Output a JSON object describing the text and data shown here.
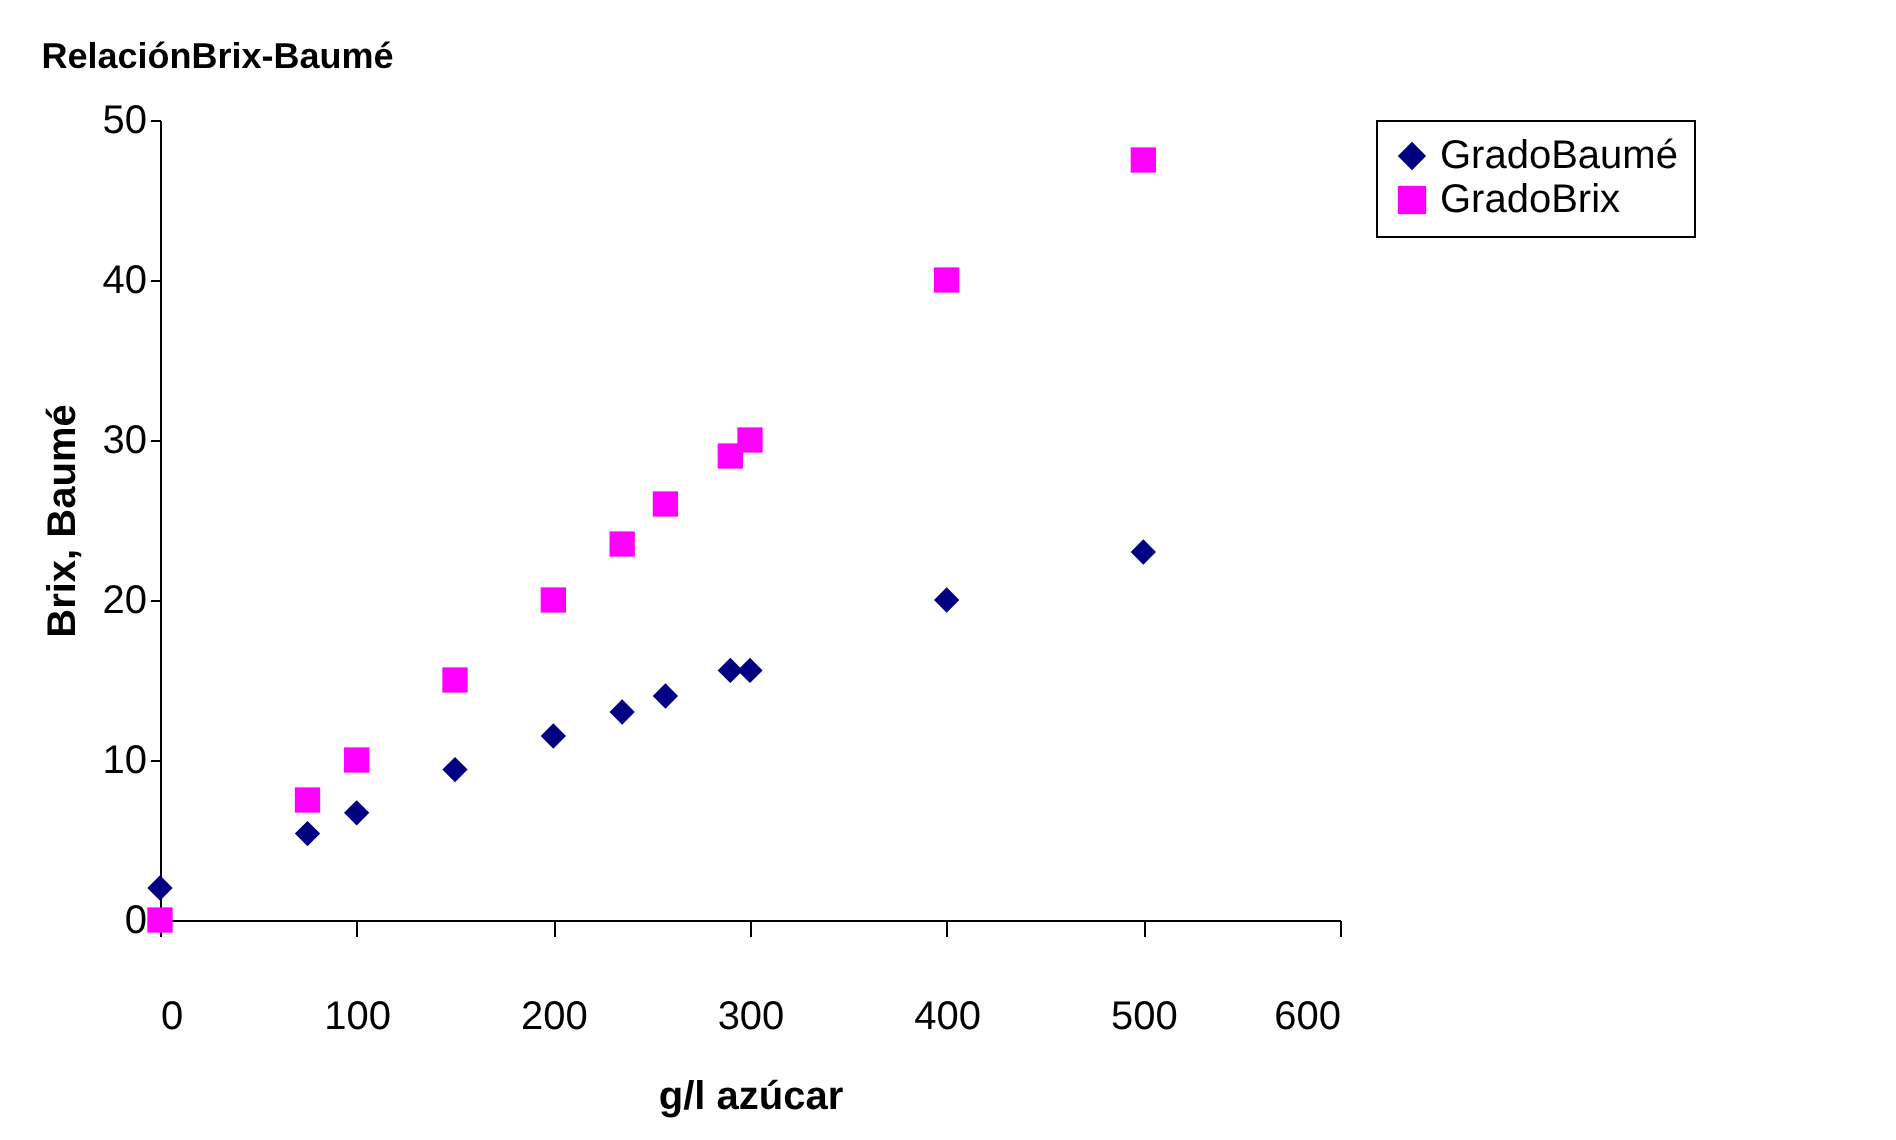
{
  "chart_data": {
    "type": "scatter",
    "title": "RelaciónBrix-Baumé",
    "xlabel": "g/l azúcar",
    "ylabel": "Brix, Baumé",
    "x": [
      0,
      75,
      100,
      150,
      200,
      235,
      257,
      290,
      300,
      400,
      500
    ],
    "series": [
      {
        "name": "GradoBaumé",
        "color": "#000080",
        "marker": "diamond",
        "values": [
          2,
          5.4,
          6.7,
          9.4,
          11.5,
          13,
          14,
          15.6,
          15.6,
          20,
          23
        ]
      },
      {
        "name": "GradoBrix",
        "color": "#ff00ff",
        "marker": "square",
        "values": [
          0,
          7.5,
          10,
          15,
          20,
          23.5,
          26,
          29,
          30,
          40,
          47.5
        ]
      }
    ],
    "xlim": [
      0,
      600
    ],
    "xticks": [
      0,
      100,
      200,
      300,
      400,
      500,
      600
    ],
    "ylim": [
      0,
      50
    ],
    "yticks": [
      0,
      10,
      20,
      30,
      40,
      50
    ],
    "grid": false,
    "legend": "right"
  }
}
